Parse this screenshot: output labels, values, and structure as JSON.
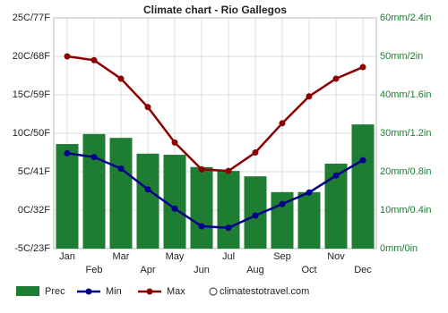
{
  "chart_data": {
    "type": "combo",
    "title": "Climate chart - Rio Gallegos",
    "categories": [
      "Jan",
      "Feb",
      "Mar",
      "Apr",
      "May",
      "Jun",
      "Jul",
      "Aug",
      "Sep",
      "Oct",
      "Nov",
      "Dec"
    ],
    "series": [
      {
        "name": "Prec",
        "type": "bar",
        "axis": "y2",
        "color": "#1e7d32",
        "values": [
          27.2,
          29.8,
          28.8,
          24.7,
          24.4,
          21.2,
          20.2,
          18.8,
          14.7,
          14.7,
          22.1,
          32.3
        ]
      },
      {
        "name": "Min",
        "type": "line",
        "color": "#00008b",
        "values": [
          7.4,
          6.9,
          5.4,
          2.7,
          0.2,
          -2.1,
          -2.3,
          -0.7,
          0.8,
          2.3,
          4.5,
          6.5
        ]
      },
      {
        "name": "Max",
        "type": "line",
        "color": "#8b0000",
        "values": [
          20.0,
          19.5,
          17.1,
          13.4,
          8.8,
          5.3,
          5.1,
          7.5,
          11.3,
          14.8,
          17.1,
          18.6
        ]
      }
    ],
    "ylim": [
      -5,
      25
    ],
    "yticks": [
      {
        "value": -5,
        "label": "-5C/23F"
      },
      {
        "value": 0,
        "label": "0C/32F"
      },
      {
        "value": 5,
        "label": "5C/41F"
      },
      {
        "value": 10,
        "label": "10C/50F"
      },
      {
        "value": 15,
        "label": "15C/59F"
      },
      {
        "value": 20,
        "label": "20C/68F"
      },
      {
        "value": 25,
        "label": "25C/77F"
      }
    ],
    "y2lim": [
      0,
      60
    ],
    "y2ticks": [
      {
        "value": 0,
        "label": "0mm/0in"
      },
      {
        "value": 10,
        "label": "10mm/0.4in"
      },
      {
        "value": 20,
        "label": "20mm/0.8in"
      },
      {
        "value": 30,
        "label": "30mm/1.2in"
      },
      {
        "value": 40,
        "label": "40mm/1.6in"
      },
      {
        "value": 50,
        "label": "50mm/2in"
      },
      {
        "value": 60,
        "label": "60mm/2.4in"
      }
    ],
    "grid": true,
    "watermark": "climatestotravel.com"
  }
}
